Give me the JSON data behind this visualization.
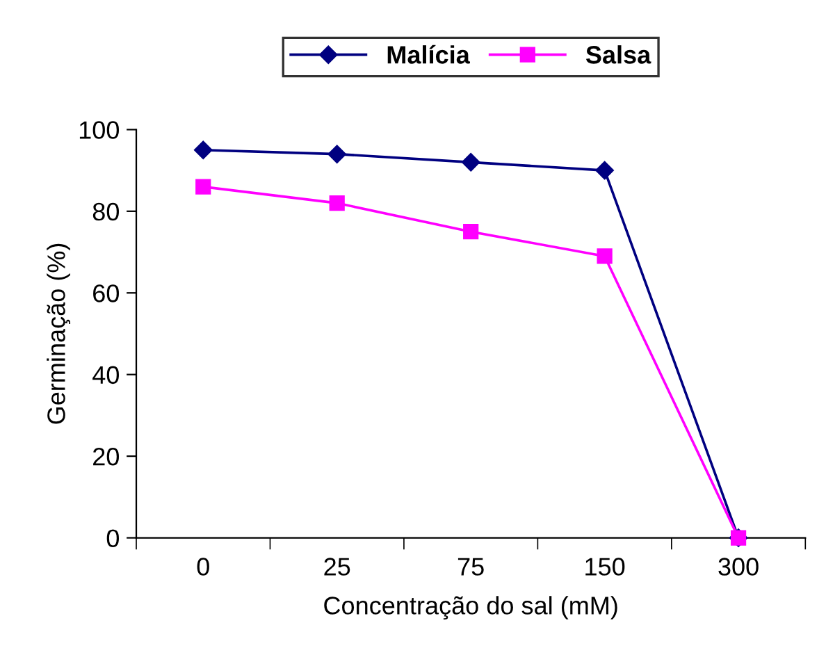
{
  "chart_data": {
    "type": "line",
    "xlabel": "Concentração do sal (mM)",
    "ylabel": "Germinação (%)",
    "categories": [
      "0",
      "25",
      "75",
      "150",
      "300"
    ],
    "series": [
      {
        "name": "Malícia",
        "color": "#000080",
        "values": [
          95,
          94,
          92,
          90,
          0
        ],
        "marker": "diamond"
      },
      {
        "name": "Salsa",
        "color": "#ff00ff",
        "values": [
          86,
          82,
          75,
          69,
          0
        ],
        "marker": "square"
      }
    ],
    "ylim": [
      0,
      100
    ],
    "yticks": [
      0,
      20,
      40,
      60,
      80,
      100
    ],
    "grid": false,
    "legend": "top",
    "line_style": "solid"
  }
}
